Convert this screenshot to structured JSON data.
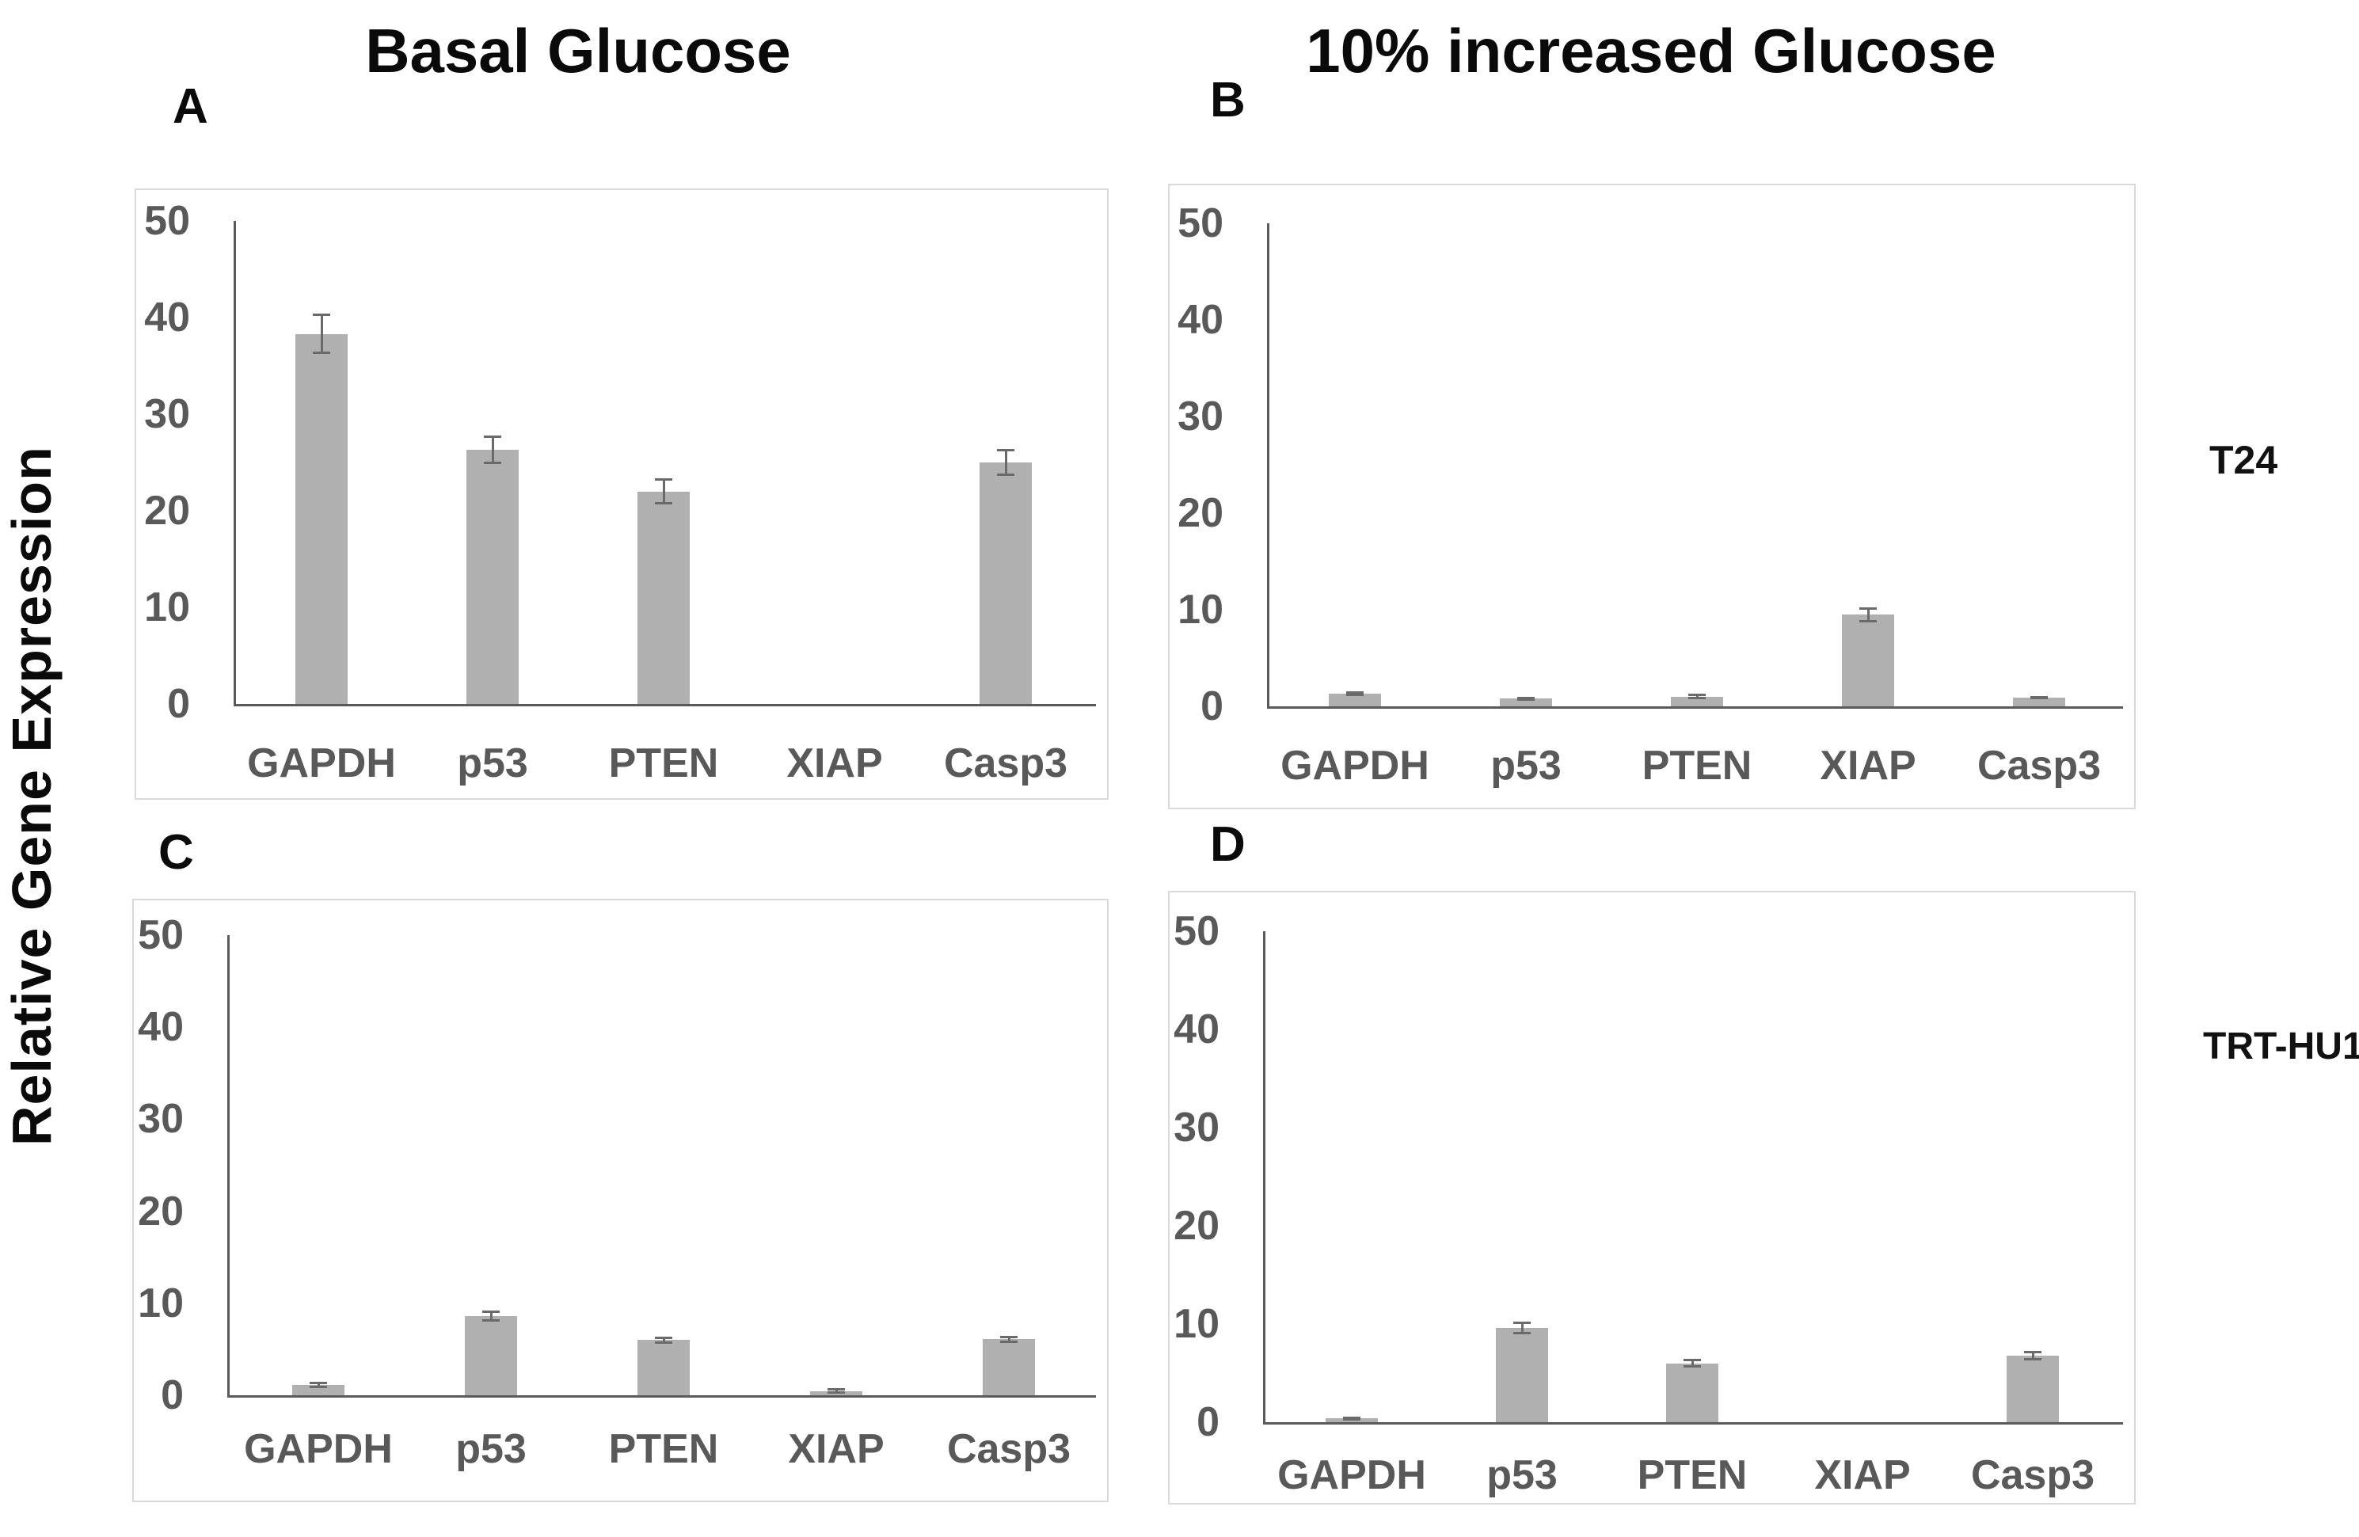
{
  "figure": {
    "y_axis_label": "Relative Gene Expression",
    "column_titles": [
      "Basal Glucose",
      "10% increased Glucose"
    ],
    "row_labels": [
      "T24",
      "TRT-HU1"
    ]
  },
  "colors": {
    "bar_fill": "#b0b0b0",
    "error_bar": "#6a6a6a",
    "axis_line": "#5a5a5a",
    "tick_text": "#595959",
    "frame_border": "#dadada",
    "title_text": "#0a0a0a"
  },
  "chart_data": [
    {
      "panel": "A",
      "type": "bar",
      "condition": "Basal Glucose",
      "cell_line": "T24",
      "categories": [
        "GAPDH",
        "p53",
        "PTEN",
        "XIAP",
        "Casp3"
      ],
      "values": [
        38.3,
        26.3,
        22.0,
        0,
        25.0
      ],
      "errors": [
        2.0,
        1.4,
        1.3,
        0,
        1.3
      ],
      "ylabel": "Relative Gene Expression",
      "ylim": [
        0,
        50
      ],
      "yticks": [
        0,
        10,
        20,
        30,
        40,
        50
      ],
      "grid": false,
      "legend": "none"
    },
    {
      "panel": "B",
      "type": "bar",
      "condition": "10% increased Glucose",
      "cell_line": "T24",
      "categories": [
        "GAPDH",
        "p53",
        "PTEN",
        "XIAP",
        "Casp3"
      ],
      "values": [
        1.3,
        0.8,
        1.0,
        9.5,
        0.9
      ],
      "errors": [
        0.15,
        0.12,
        0.2,
        0.7,
        0.12
      ],
      "ylabel": "Relative Gene Expression",
      "ylim": [
        0,
        50
      ],
      "yticks": [
        0,
        10,
        20,
        30,
        40,
        50
      ],
      "grid": false,
      "legend": "none"
    },
    {
      "panel": "C",
      "type": "bar",
      "condition": "Basal Glucose",
      "cell_line": "TRT-HU1",
      "categories": [
        "GAPDH",
        "p53",
        "PTEN",
        "XIAP",
        "Casp3"
      ],
      "values": [
        1.1,
        8.6,
        6.0,
        0.45,
        6.1
      ],
      "errors": [
        0.25,
        0.5,
        0.3,
        0.2,
        0.3
      ],
      "ylabel": "Relative Gene Expression",
      "ylim": [
        0,
        50
      ],
      "yticks": [
        0,
        10,
        20,
        30,
        40,
        50
      ],
      "grid": false,
      "legend": "none"
    },
    {
      "panel": "D",
      "type": "bar",
      "condition": "10% increased Glucose",
      "cell_line": "TRT-HU1",
      "categories": [
        "GAPDH",
        "p53",
        "PTEN",
        "XIAP",
        "Casp3"
      ],
      "values": [
        0.4,
        9.6,
        6.0,
        0,
        6.8
      ],
      "errors": [
        0.12,
        0.6,
        0.35,
        0,
        0.4
      ],
      "ylabel": "Relative Gene Expression",
      "ylim": [
        0,
        50
      ],
      "yticks": [
        0,
        10,
        20,
        30,
        40,
        50
      ],
      "grid": false,
      "legend": "none"
    }
  ]
}
